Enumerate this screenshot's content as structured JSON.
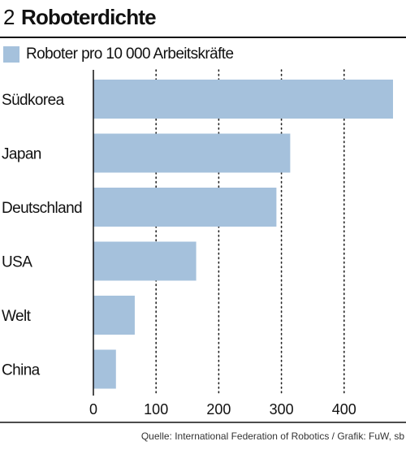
{
  "figure": {
    "number": "2",
    "title": "Roboterdichte",
    "source": "Quelle: International Federation of Robotics / Grafik: FuW, sb"
  },
  "chart_data": {
    "type": "bar",
    "orientation": "horizontal",
    "categories": [
      "Südkorea",
      "Japan",
      "Deutschland",
      "USA",
      "Welt",
      "China"
    ],
    "series": [
      {
        "name": "Roboter pro 10 000 Arbeitskräfte",
        "values": [
          478,
          314,
          292,
          164,
          66,
          36
        ],
        "color": "#a5c1dc"
      }
    ],
    "xlim": [
      0,
      478
    ],
    "xticks": [
      0,
      100,
      200,
      300,
      400
    ],
    "grid": "dotted-vertical",
    "legend_position": "top-left"
  }
}
